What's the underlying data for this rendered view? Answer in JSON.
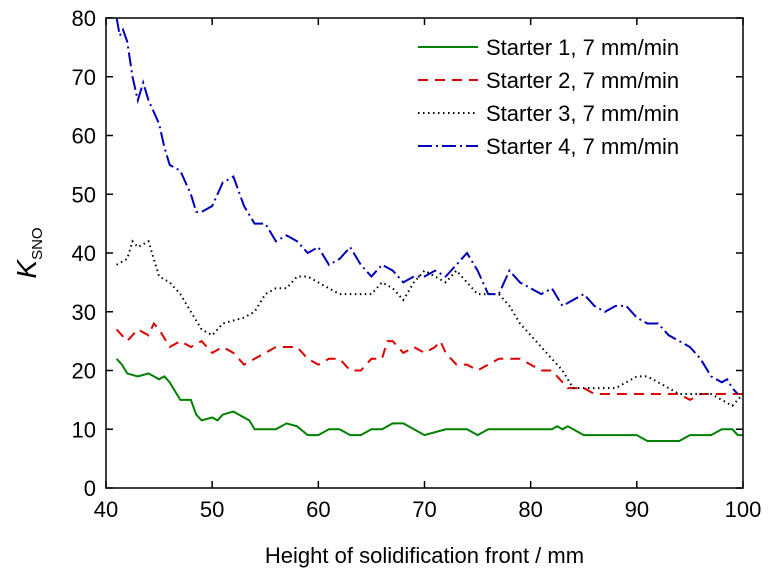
{
  "chart_data": {
    "type": "line",
    "xlabel": "Height of solidification front / mm",
    "ylabel_main": "K",
    "ylabel_sub": "SNO",
    "xlim": [
      40,
      100
    ],
    "ylim": [
      0,
      80
    ],
    "xticks": [
      "40",
      "50",
      "60",
      "70",
      "80",
      "90",
      "100"
    ],
    "yticks": [
      "0",
      "10",
      "20",
      "30",
      "40",
      "50",
      "60",
      "70",
      "80"
    ],
    "grid": false,
    "legend_position": "top-right",
    "series": [
      {
        "name": "Starter 1, 7 mm/min",
        "color": "#008000",
        "dash": "solid",
        "points": [
          [
            41,
            22
          ],
          [
            41.5,
            21
          ],
          [
            42,
            19.5
          ],
          [
            43,
            19
          ],
          [
            44,
            19.5
          ],
          [
            45,
            18.5
          ],
          [
            45.5,
            19
          ],
          [
            46,
            18
          ],
          [
            47,
            15
          ],
          [
            48,
            15
          ],
          [
            48.5,
            12.5
          ],
          [
            49,
            11.5
          ],
          [
            50,
            12
          ],
          [
            50.5,
            11.5
          ],
          [
            51,
            12.5
          ],
          [
            52,
            13
          ],
          [
            53,
            12
          ],
          [
            53.5,
            11.5
          ],
          [
            54,
            10
          ],
          [
            56,
            10
          ],
          [
            57,
            11
          ],
          [
            58,
            10.5
          ],
          [
            59,
            9
          ],
          [
            60,
            9
          ],
          [
            61,
            10
          ],
          [
            62,
            10
          ],
          [
            63,
            9
          ],
          [
            64,
            9
          ],
          [
            65,
            10
          ],
          [
            66,
            10
          ],
          [
            67,
            11
          ],
          [
            68,
            11
          ],
          [
            69,
            10
          ],
          [
            70,
            9
          ],
          [
            71,
            9.5
          ],
          [
            72,
            10
          ],
          [
            74,
            10
          ],
          [
            75,
            9
          ],
          [
            76,
            10
          ],
          [
            78,
            10
          ],
          [
            80,
            10
          ],
          [
            82,
            10
          ],
          [
            82.5,
            10.5
          ],
          [
            83,
            10
          ],
          [
            83.5,
            10.5
          ],
          [
            84,
            10
          ],
          [
            85,
            9
          ],
          [
            88,
            9
          ],
          [
            90,
            9
          ],
          [
            91,
            8
          ],
          [
            94,
            8
          ],
          [
            95,
            9
          ],
          [
            97,
            9
          ],
          [
            98,
            10
          ],
          [
            99,
            10
          ],
          [
            99.5,
            9
          ],
          [
            100,
            9
          ]
        ]
      },
      {
        "name": "Starter 2, 7 mm/min",
        "color": "#dd0000",
        "dash": "10,7",
        "points": [
          [
            41,
            27
          ],
          [
            42,
            25
          ],
          [
            43,
            27
          ],
          [
            44,
            26
          ],
          [
            44.5,
            28
          ],
          [
            45,
            27
          ],
          [
            46,
            24
          ],
          [
            47,
            25
          ],
          [
            48,
            24
          ],
          [
            49,
            25
          ],
          [
            50,
            23
          ],
          [
            51,
            24
          ],
          [
            52,
            23
          ],
          [
            53,
            21
          ],
          [
            54,
            22
          ],
          [
            55,
            23
          ],
          [
            56,
            24
          ],
          [
            58,
            24
          ],
          [
            59,
            22
          ],
          [
            60,
            21
          ],
          [
            61,
            22
          ],
          [
            62,
            22
          ],
          [
            63,
            20
          ],
          [
            64,
            20
          ],
          [
            65,
            22
          ],
          [
            66,
            22
          ],
          [
            66.5,
            25
          ],
          [
            67,
            25
          ],
          [
            68,
            23
          ],
          [
            69,
            24
          ],
          [
            70,
            23
          ],
          [
            71,
            24
          ],
          [
            71.5,
            25
          ],
          [
            72,
            23
          ],
          [
            73,
            21
          ],
          [
            74,
            21
          ],
          [
            75,
            20
          ],
          [
            76,
            21
          ],
          [
            77,
            22
          ],
          [
            78,
            22
          ],
          [
            79,
            22
          ],
          [
            80,
            21
          ],
          [
            81,
            20
          ],
          [
            82,
            20
          ],
          [
            83,
            18
          ],
          [
            83.5,
            17
          ],
          [
            85,
            17
          ],
          [
            86,
            16
          ],
          [
            88,
            16
          ],
          [
            90,
            16
          ],
          [
            92,
            16
          ],
          [
            94,
            16
          ],
          [
            95,
            15
          ],
          [
            96,
            16
          ],
          [
            98,
            16
          ],
          [
            100,
            16
          ]
        ]
      },
      {
        "name": "Starter 3, 7 mm/min",
        "color": "#000000",
        "dash": "1.5,3.5",
        "points": [
          [
            41,
            38
          ],
          [
            42,
            39
          ],
          [
            42.5,
            42
          ],
          [
            43,
            41
          ],
          [
            44,
            42
          ],
          [
            45,
            36
          ],
          [
            46,
            35
          ],
          [
            47,
            33
          ],
          [
            48,
            30
          ],
          [
            49,
            27
          ],
          [
            50,
            26
          ],
          [
            51,
            28
          ],
          [
            53,
            29
          ],
          [
            54,
            30
          ],
          [
            55,
            33
          ],
          [
            56,
            34
          ],
          [
            57,
            34
          ],
          [
            58,
            36
          ],
          [
            59,
            36
          ],
          [
            60,
            35
          ],
          [
            61,
            34
          ],
          [
            62,
            33
          ],
          [
            63,
            33
          ],
          [
            64,
            33
          ],
          [
            65,
            33
          ],
          [
            66,
            35
          ],
          [
            67,
            34
          ],
          [
            68,
            32
          ],
          [
            69,
            35
          ],
          [
            70,
            37
          ],
          [
            71,
            36
          ],
          [
            72,
            35
          ],
          [
            73,
            37
          ],
          [
            74,
            35
          ],
          [
            75,
            33
          ],
          [
            76,
            33
          ],
          [
            77,
            33
          ],
          [
            78,
            31
          ],
          [
            79,
            28
          ],
          [
            80,
            26
          ],
          [
            81,
            24
          ],
          [
            82,
            22
          ],
          [
            83,
            20
          ],
          [
            84,
            17
          ],
          [
            86,
            17
          ],
          [
            88,
            17
          ],
          [
            89,
            18
          ],
          [
            90,
            19
          ],
          [
            91,
            19
          ],
          [
            92,
            18
          ],
          [
            93,
            17
          ],
          [
            94,
            16
          ],
          [
            96,
            16
          ],
          [
            97,
            16
          ],
          [
            98,
            15
          ],
          [
            99,
            14
          ],
          [
            100,
            16
          ]
        ]
      },
      {
        "name": "Starter 4, 7 mm/min",
        "color": "#0000bb",
        "dash": "14,4,2,4",
        "points": [
          [
            41,
            80
          ],
          [
            41.3,
            77
          ],
          [
            41.6,
            78
          ],
          [
            42,
            76
          ],
          [
            42.5,
            70
          ],
          [
            43,
            66
          ],
          [
            43.5,
            69
          ],
          [
            44,
            66
          ],
          [
            44.5,
            64
          ],
          [
            45,
            62
          ],
          [
            45.5,
            58
          ],
          [
            46,
            55
          ],
          [
            47,
            54
          ],
          [
            47.5,
            52
          ],
          [
            48,
            50
          ],
          [
            48.5,
            47
          ],
          [
            49,
            47
          ],
          [
            50,
            48
          ],
          [
            51,
            52
          ],
          [
            52,
            53
          ],
          [
            53,
            48
          ],
          [
            54,
            45
          ],
          [
            55,
            45
          ],
          [
            56,
            42
          ],
          [
            57,
            43
          ],
          [
            58,
            42
          ],
          [
            59,
            40
          ],
          [
            60,
            41
          ],
          [
            61,
            38
          ],
          [
            62,
            39
          ],
          [
            63,
            41
          ],
          [
            64,
            38
          ],
          [
            65,
            36
          ],
          [
            66,
            38
          ],
          [
            67,
            37
          ],
          [
            68,
            35
          ],
          [
            69,
            36
          ],
          [
            70,
            36
          ],
          [
            71,
            37
          ],
          [
            72,
            36
          ],
          [
            73,
            38
          ],
          [
            74,
            40
          ],
          [
            75,
            37
          ],
          [
            76,
            33
          ],
          [
            77,
            33
          ],
          [
            78,
            37
          ],
          [
            79,
            35
          ],
          [
            80,
            34
          ],
          [
            81,
            33
          ],
          [
            82,
            34
          ],
          [
            83,
            31
          ],
          [
            84,
            32
          ],
          [
            85,
            33
          ],
          [
            86,
            31
          ],
          [
            87,
            30
          ],
          [
            88,
            31
          ],
          [
            89,
            31
          ],
          [
            90,
            29
          ],
          [
            91,
            28
          ],
          [
            92,
            28
          ],
          [
            93,
            26
          ],
          [
            94,
            25
          ],
          [
            95,
            24
          ],
          [
            96,
            22
          ],
          [
            97,
            19
          ],
          [
            98,
            18
          ],
          [
            98.5,
            18.5
          ],
          [
            99,
            17
          ],
          [
            99.5,
            16
          ]
        ]
      }
    ]
  }
}
